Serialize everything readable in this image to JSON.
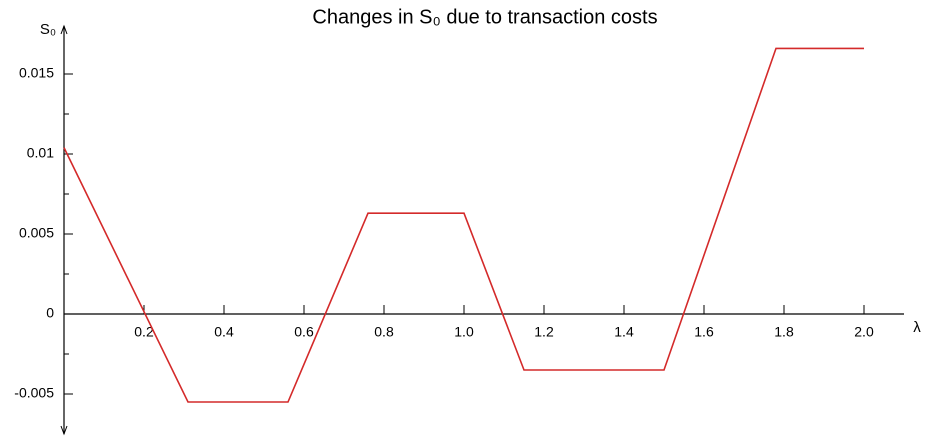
{
  "chart_data": {
    "type": "line",
    "title": "Changes in S₀ due to transaction costs",
    "y_label": "S₀",
    "x_label": "λ",
    "x": [
      0,
      0.31,
      0.56,
      0.76,
      1.0,
      1.15,
      1.5,
      1.78,
      2.0
    ],
    "series": [
      {
        "color": "#d42a2a",
        "values": [
          0.0104,
          -0.0055,
          -0.0055,
          0.0063,
          0.0063,
          -0.0035,
          -0.0035,
          0.0166,
          0.0166
        ]
      }
    ],
    "xlim": [
      0,
      2.1
    ],
    "ylim": [
      -0.0075,
      0.018
    ],
    "xticks": [
      0.2,
      0.4,
      0.6,
      0.8,
      {
        "value": 1,
        "label": "1.0"
      },
      1.2,
      1.4,
      1.6,
      1.8,
      {
        "value": 2,
        "label": "2.0"
      }
    ],
    "yticks": [
      -0.005,
      0,
      0.005,
      0.01,
      0.015
    ],
    "yticks_minor": [
      -0.0025,
      0.0025,
      0.0075,
      0.0125
    ]
  }
}
